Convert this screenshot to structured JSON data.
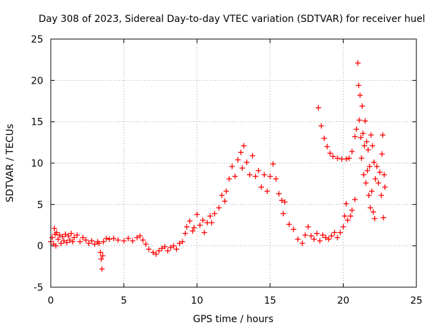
{
  "chart_data": {
    "type": "scatter",
    "title": "Day 308 of 2023, Sidereal Day-to-day VTEC variation (SDTVAR) for receiver huel",
    "xlabel": "GPS time / hours",
    "ylabel": "SDTVAR / TECUs",
    "xlim": [
      0,
      25
    ],
    "ylim": [
      -5,
      25
    ],
    "xticks": [
      0,
      5,
      10,
      15,
      20,
      25
    ],
    "yticks": [
      -5,
      0,
      5,
      10,
      15,
      20,
      25
    ],
    "grid": true,
    "marker": "+",
    "series_color": "#ff0000",
    "series": [
      {
        "name": "SDTVAR",
        "points": [
          [
            0.0,
            0.5
          ],
          [
            0.1,
            1.0
          ],
          [
            0.2,
            0.2
          ],
          [
            0.25,
            2.1
          ],
          [
            0.3,
            1.4
          ],
          [
            0.35,
            0.0
          ],
          [
            0.4,
            1.6
          ],
          [
            0.5,
            0.8
          ],
          [
            0.6,
            1.3
          ],
          [
            0.7,
            0.3
          ],
          [
            0.8,
            1.1
          ],
          [
            0.9,
            0.6
          ],
          [
            1.0,
            1.4
          ],
          [
            1.1,
            0.4
          ],
          [
            1.2,
            1.2
          ],
          [
            1.3,
            0.7
          ],
          [
            1.4,
            1.5
          ],
          [
            1.5,
            0.5
          ],
          [
            1.6,
            1.0
          ],
          [
            1.8,
            1.3
          ],
          [
            2.0,
            0.5
          ],
          [
            2.2,
            1.0
          ],
          [
            2.4,
            0.7
          ],
          [
            2.6,
            0.3
          ],
          [
            2.8,
            0.6
          ],
          [
            3.0,
            0.2
          ],
          [
            3.2,
            0.5
          ],
          [
            3.3,
            0.3
          ],
          [
            3.4,
            -0.8
          ],
          [
            3.45,
            -1.6
          ],
          [
            3.5,
            -2.8
          ],
          [
            3.55,
            -1.2
          ],
          [
            3.6,
            0.5
          ],
          [
            3.8,
            0.9
          ],
          [
            4.0,
            0.8
          ],
          [
            4.3,
            0.9
          ],
          [
            4.6,
            0.7
          ],
          [
            5.0,
            0.6
          ],
          [
            5.3,
            0.9
          ],
          [
            5.6,
            0.6
          ],
          [
            5.9,
            1.0
          ],
          [
            6.1,
            1.2
          ],
          [
            6.3,
            0.7
          ],
          [
            6.5,
            0.2
          ],
          [
            6.7,
            -0.4
          ],
          [
            7.0,
            -0.8
          ],
          [
            7.2,
            -1.0
          ],
          [
            7.4,
            -0.6
          ],
          [
            7.6,
            -0.3
          ],
          [
            7.8,
            -0.1
          ],
          [
            8.0,
            -0.6
          ],
          [
            8.2,
            -0.2
          ],
          [
            8.4,
            0.0
          ],
          [
            8.6,
            -0.4
          ],
          [
            8.8,
            0.3
          ],
          [
            9.0,
            0.5
          ],
          [
            9.2,
            1.5
          ],
          [
            9.3,
            2.3
          ],
          [
            9.5,
            3.0
          ],
          [
            9.7,
            1.8
          ],
          [
            9.8,
            2.2
          ],
          [
            10.0,
            3.8
          ],
          [
            10.2,
            2.5
          ],
          [
            10.4,
            3.1
          ],
          [
            10.5,
            1.6
          ],
          [
            10.7,
            2.8
          ],
          [
            10.9,
            3.6
          ],
          [
            11.0,
            2.8
          ],
          [
            11.2,
            3.9
          ],
          [
            11.5,
            4.6
          ],
          [
            11.7,
            6.1
          ],
          [
            11.9,
            5.4
          ],
          [
            12.0,
            6.6
          ],
          [
            12.2,
            8.1
          ],
          [
            12.4,
            9.6
          ],
          [
            12.6,
            8.4
          ],
          [
            12.8,
            10.4
          ],
          [
            13.0,
            11.3
          ],
          [
            13.1,
            9.4
          ],
          [
            13.2,
            12.1
          ],
          [
            13.4,
            10.1
          ],
          [
            13.6,
            8.6
          ],
          [
            13.8,
            10.9
          ],
          [
            14.0,
            8.4
          ],
          [
            14.2,
            9.1
          ],
          [
            14.4,
            7.1
          ],
          [
            14.6,
            8.6
          ],
          [
            14.8,
            6.6
          ],
          [
            15.0,
            8.4
          ],
          [
            15.2,
            9.9
          ],
          [
            15.4,
            8.1
          ],
          [
            15.6,
            6.3
          ],
          [
            15.8,
            5.5
          ],
          [
            15.9,
            3.9
          ],
          [
            16.0,
            5.3
          ],
          [
            16.3,
            2.6
          ],
          [
            16.6,
            2.0
          ],
          [
            16.9,
            0.8
          ],
          [
            17.2,
            0.3
          ],
          [
            17.4,
            1.3
          ],
          [
            17.6,
            2.3
          ],
          [
            17.8,
            1.2
          ],
          [
            18.0,
            0.8
          ],
          [
            18.2,
            1.5
          ],
          [
            18.4,
            0.6
          ],
          [
            18.6,
            1.3
          ],
          [
            18.8,
            1.0
          ],
          [
            19.0,
            0.8
          ],
          [
            19.2,
            1.2
          ],
          [
            19.4,
            1.6
          ],
          [
            19.6,
            1.0
          ],
          [
            19.8,
            1.6
          ],
          [
            20.0,
            2.3
          ],
          [
            20.1,
            3.6
          ],
          [
            20.2,
            5.1
          ],
          [
            20.3,
            3.1
          ],
          [
            20.5,
            3.6
          ],
          [
            20.6,
            4.3
          ],
          [
            20.8,
            5.6
          ],
          [
            18.3,
            16.7
          ],
          [
            18.5,
            14.5
          ],
          [
            18.7,
            13.0
          ],
          [
            18.9,
            12.0
          ],
          [
            19.1,
            11.2
          ],
          [
            19.3,
            10.8
          ],
          [
            19.6,
            10.6
          ],
          [
            19.9,
            10.5
          ],
          [
            20.2,
            10.5
          ],
          [
            20.4,
            10.6
          ],
          [
            20.6,
            11.4
          ],
          [
            20.8,
            13.2
          ],
          [
            20.9,
            14.1
          ],
          [
            21.0,
            22.1
          ],
          [
            21.05,
            19.4
          ],
          [
            21.1,
            15.2
          ],
          [
            21.15,
            18.2
          ],
          [
            21.2,
            13.1
          ],
          [
            21.25,
            10.6
          ],
          [
            21.3,
            16.9
          ],
          [
            21.35,
            13.6
          ],
          [
            21.4,
            8.6
          ],
          [
            21.45,
            12.1
          ],
          [
            21.5,
            15.1
          ],
          [
            21.55,
            7.6
          ],
          [
            21.6,
            12.6
          ],
          [
            21.65,
            9.1
          ],
          [
            21.7,
            11.6
          ],
          [
            21.75,
            6.1
          ],
          [
            21.8,
            9.6
          ],
          [
            21.85,
            4.6
          ],
          [
            21.9,
            13.4
          ],
          [
            21.95,
            6.6
          ],
          [
            22.0,
            12.1
          ],
          [
            22.05,
            4.1
          ],
          [
            22.1,
            10.1
          ],
          [
            22.15,
            3.3
          ],
          [
            22.2,
            8.1
          ],
          [
            22.3,
            9.6
          ],
          [
            22.4,
            7.6
          ],
          [
            22.5,
            8.9
          ],
          [
            22.6,
            6.1
          ],
          [
            22.65,
            11.1
          ],
          [
            22.7,
            13.4
          ],
          [
            22.75,
            3.4
          ],
          [
            22.8,
            8.6
          ],
          [
            22.85,
            7.1
          ]
        ]
      }
    ]
  }
}
